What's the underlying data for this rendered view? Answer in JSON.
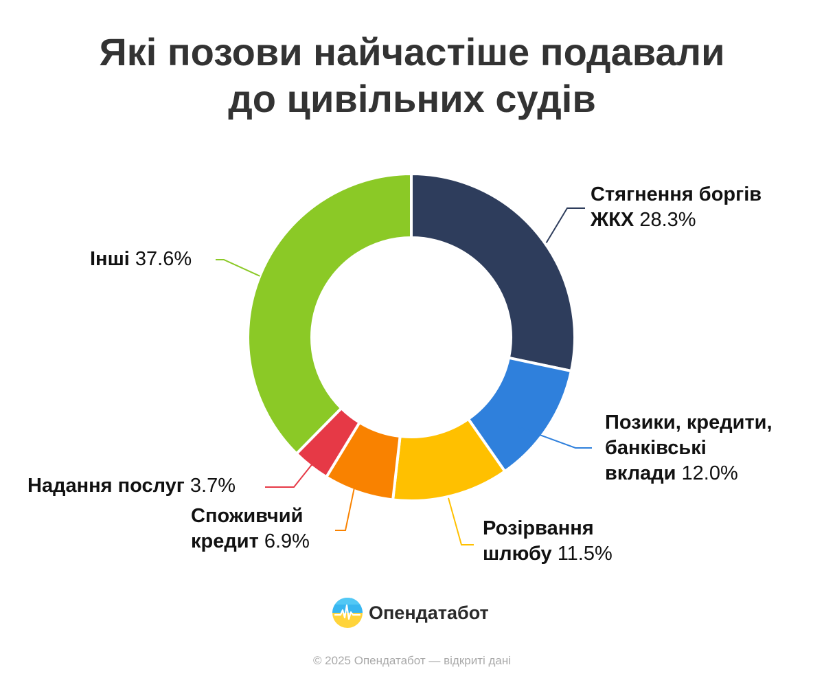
{
  "title": {
    "line1": "Які позови найчастіше подавали",
    "line2": "до цивільних судів"
  },
  "chart_data": {
    "type": "pie",
    "variant": "donut",
    "slices": [
      {
        "name_line1": "Стягнення боргів",
        "name_line2": "ЖКХ",
        "name_line3": "",
        "value": 28.3,
        "pct_label": "28.3%",
        "color": "#2e3d5c"
      },
      {
        "name_line1": "Позики, кредити,",
        "name_line2": "банківські",
        "name_line3": "вклади",
        "value": 12.0,
        "pct_label": "12.0%",
        "color": "#2f80dc"
      },
      {
        "name_line1": "Розірвання",
        "name_line2": "шлюбу",
        "name_line3": "",
        "value": 11.5,
        "pct_label": "11.5%",
        "color": "#ffc000"
      },
      {
        "name_line1": "Споживчий",
        "name_line2": "кредит",
        "name_line3": "",
        "value": 6.9,
        "pct_label": "6.9%",
        "color": "#f98200"
      },
      {
        "name_line1": "Надання послуг",
        "name_line2": "",
        "name_line3": "",
        "value": 3.7,
        "pct_label": "3.7%",
        "color": "#e63946"
      },
      {
        "name_line1": "Інші",
        "name_line2": "",
        "name_line3": "",
        "value": 37.6,
        "pct_label": "37.6%",
        "color": "#8bc926"
      }
    ]
  },
  "brand": {
    "name": "Опендатабот",
    "logo_icon": "opendatabot-logo-icon"
  },
  "footer": {
    "copyright": "© 2025 Опендатабот — відкриті дані"
  }
}
